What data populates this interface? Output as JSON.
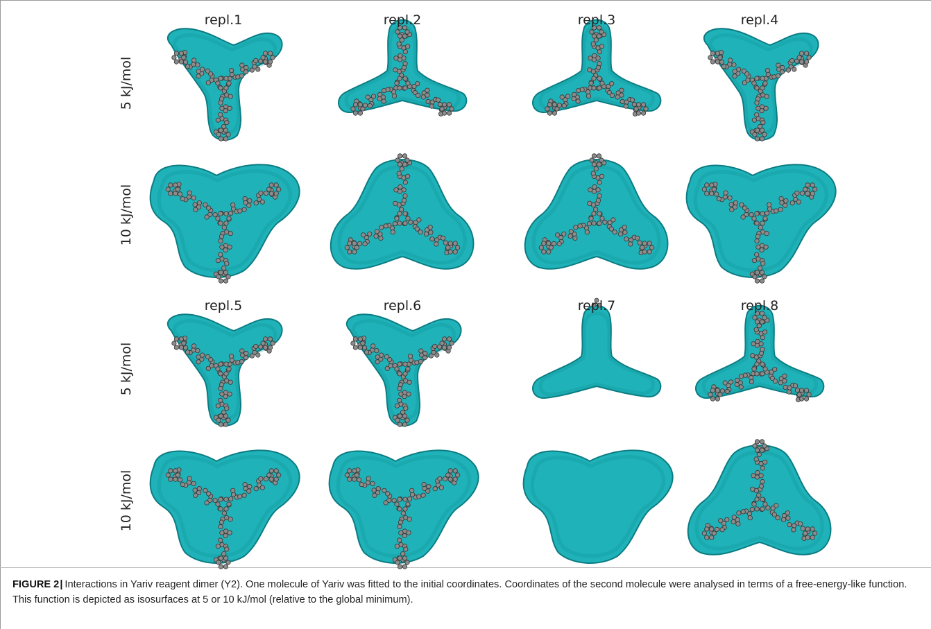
{
  "figure": {
    "columns": [
      [
        "repl.1",
        "repl.2",
        "repl.3",
        "repl.4"
      ],
      [
        "repl.5",
        "repl.6",
        "repl.7",
        "repl.8"
      ]
    ],
    "row_labels": [
      "5 kJ/mol",
      "10 kJ/mol"
    ],
    "isosurface_color": "#1fb3b9",
    "isosurface_edge_color": "#0b7c82",
    "atom_color": "#8c8c8c",
    "panels": [
      {
        "block": 0,
        "col": 0,
        "row": 0,
        "surface": "trefoil",
        "atoms": true
      },
      {
        "block": 0,
        "col": 1,
        "row": 0,
        "surface": "trefoil-up",
        "atoms": true
      },
      {
        "block": 0,
        "col": 2,
        "row": 0,
        "surface": "trefoil-up",
        "atoms": true
      },
      {
        "block": 0,
        "col": 3,
        "row": 0,
        "surface": "trefoil",
        "atoms": true
      },
      {
        "block": 0,
        "col": 0,
        "row": 1,
        "surface": "blob",
        "atoms": true
      },
      {
        "block": 0,
        "col": 1,
        "row": 1,
        "surface": "blob-up",
        "atoms": true
      },
      {
        "block": 0,
        "col": 2,
        "row": 1,
        "surface": "blob-up",
        "atoms": true
      },
      {
        "block": 0,
        "col": 3,
        "row": 1,
        "surface": "blob",
        "atoms": true
      },
      {
        "block": 1,
        "col": 0,
        "row": 0,
        "surface": "trefoil",
        "atoms": true
      },
      {
        "block": 1,
        "col": 1,
        "row": 0,
        "surface": "trefoil",
        "atoms": true
      },
      {
        "block": 1,
        "col": 2,
        "row": 0,
        "surface": "trefoil-up",
        "atoms": false
      },
      {
        "block": 1,
        "col": 3,
        "row": 0,
        "surface": "trefoil-up",
        "atoms": true
      },
      {
        "block": 1,
        "col": 0,
        "row": 1,
        "surface": "blob",
        "atoms": true
      },
      {
        "block": 1,
        "col": 1,
        "row": 1,
        "surface": "blob",
        "atoms": true
      },
      {
        "block": 1,
        "col": 2,
        "row": 1,
        "surface": "blob",
        "atoms": false
      },
      {
        "block": 1,
        "col": 3,
        "row": 1,
        "surface": "blob-up",
        "atoms": true
      }
    ]
  },
  "caption": {
    "label": "FIGURE 2",
    "separator": "|",
    "text": "Interactions in Yariv reagent dimer (Y2). One molecule of Yariv was fitted to the initial coordinates. Coordinates of the second molecule were analysed in terms of a free-energy-like function. This function is depicted as isosurfaces at 5 or 10 kJ/mol (relative to the global minimum)."
  }
}
